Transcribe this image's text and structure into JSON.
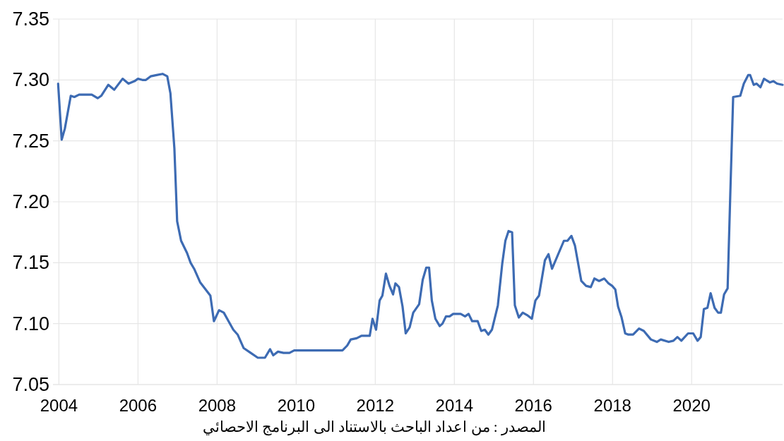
{
  "chart_data": {
    "type": "line",
    "x": [
      2003.98,
      2004.07,
      2004.15,
      2004.3,
      2004.39,
      2004.51,
      2004.83,
      2004.98,
      2005.07,
      2005.25,
      2005.4,
      2005.61,
      2005.76,
      2005.91,
      2006.0,
      2006.11,
      2006.2,
      2006.32,
      2006.47,
      2006.62,
      2006.74,
      2006.82,
      2006.92,
      2006.99,
      2007.09,
      2007.24,
      2007.33,
      2007.42,
      2007.57,
      2007.83,
      2007.92,
      2008.05,
      2008.17,
      2008.29,
      2008.41,
      2008.52,
      2008.67,
      2008.85,
      2009.03,
      2009.21,
      2009.34,
      2009.42,
      2009.54,
      2009.68,
      2009.83,
      2009.95,
      2011.17,
      2011.29,
      2011.38,
      2011.53,
      2011.65,
      2011.86,
      2011.93,
      2012.02,
      2012.11,
      2012.18,
      2012.27,
      2012.36,
      2012.45,
      2012.51,
      2012.6,
      2012.69,
      2012.77,
      2012.87,
      2012.96,
      2013.11,
      2013.2,
      2013.29,
      2013.36,
      2013.43,
      2013.52,
      2013.63,
      2013.7,
      2013.79,
      2013.88,
      2013.97,
      2014.16,
      2014.27,
      2014.36,
      2014.45,
      2014.59,
      2014.68,
      2014.77,
      2014.86,
      2014.95,
      2015.1,
      2015.21,
      2015.29,
      2015.37,
      2015.46,
      2015.53,
      2015.63,
      2015.73,
      2015.84,
      2015.96,
      2016.05,
      2016.14,
      2016.29,
      2016.38,
      2016.47,
      2016.77,
      2016.86,
      2016.96,
      2017.05,
      2017.21,
      2017.33,
      2017.45,
      2017.54,
      2017.66,
      2017.79,
      2017.9,
      2017.99,
      2018.07,
      2018.14,
      2018.23,
      2018.32,
      2018.4,
      2018.52,
      2018.67,
      2018.79,
      2018.97,
      2019.12,
      2019.22,
      2019.42,
      2019.54,
      2019.64,
      2019.74,
      2019.91,
      2020.04,
      2020.15,
      2020.23,
      2020.31,
      2020.4,
      2020.48,
      2020.58,
      2020.67,
      2020.74,
      2020.82,
      2020.91,
      2020.98,
      2021.05,
      2021.23,
      2021.32,
      2021.43,
      2021.48,
      2021.57,
      2021.64,
      2021.74,
      2021.83,
      2021.98,
      2022.07,
      2022.16,
      2022.3
    ],
    "series": [
      {
        "color": "#3d6bb3",
        "values": [
          7.297,
          7.251,
          7.26,
          7.287,
          7.286,
          7.288,
          7.288,
          7.285,
          7.287,
          7.296,
          7.292,
          7.301,
          7.297,
          7.299,
          7.301,
          7.3,
          7.3,
          7.303,
          7.304,
          7.305,
          7.303,
          7.289,
          7.244,
          7.184,
          7.168,
          7.158,
          7.15,
          7.145,
          7.134,
          7.123,
          7.102,
          7.111,
          7.109,
          7.102,
          7.095,
          7.091,
          7.08,
          7.076,
          7.072,
          7.072,
          7.079,
          7.074,
          7.077,
          7.076,
          7.076,
          7.078,
          7.078,
          7.082,
          7.087,
          7.088,
          7.09,
          7.09,
          7.104,
          7.095,
          7.119,
          7.123,
          7.141,
          7.131,
          7.124,
          7.133,
          7.13,
          7.114,
          7.092,
          7.097,
          7.109,
          7.116,
          7.136,
          7.146,
          7.146,
          7.119,
          7.104,
          7.098,
          7.1,
          7.106,
          7.106,
          7.108,
          7.108,
          7.106,
          7.108,
          7.102,
          7.102,
          7.094,
          7.095,
          7.091,
          7.095,
          7.115,
          7.149,
          7.168,
          7.176,
          7.175,
          7.115,
          7.105,
          7.109,
          7.107,
          7.104,
          7.119,
          7.123,
          7.152,
          7.157,
          7.145,
          7.168,
          7.168,
          7.172,
          7.164,
          7.135,
          7.131,
          7.13,
          7.137,
          7.135,
          7.137,
          7.133,
          7.131,
          7.128,
          7.114,
          7.105,
          7.092,
          7.091,
          7.091,
          7.096,
          7.094,
          7.087,
          7.085,
          7.087,
          7.085,
          7.086,
          7.089,
          7.086,
          7.092,
          7.092,
          7.086,
          7.089,
          7.112,
          7.113,
          7.125,
          7.113,
          7.109,
          7.109,
          7.124,
          7.129,
          7.209,
          7.286,
          7.287,
          7.297,
          7.304,
          7.304,
          7.296,
          7.297,
          7.294,
          7.301,
          7.298,
          7.299,
          7.297,
          7.296
        ]
      }
    ],
    "xlim": [
      2003.85,
      2022.3
    ],
    "xticks": [
      2004,
      2006,
      2008,
      2010,
      2012,
      2014,
      2016,
      2018,
      2020
    ],
    "ylim": [
      7.05,
      7.35
    ],
    "yticks": [
      7.05,
      {
        "value": 7.1,
        "label": "7.10"
      },
      7.15,
      {
        "value": 7.2,
        "label": "7.20"
      },
      7.25,
      {
        "value": 7.3,
        "label": "7.30"
      },
      7.35
    ],
    "grid": true,
    "marker": "none",
    "line_style": "solid",
    "annotations": [
      "المصدر : من اعداد الباحث بالاستناد الى البرنامج الاحصائي"
    ]
  }
}
